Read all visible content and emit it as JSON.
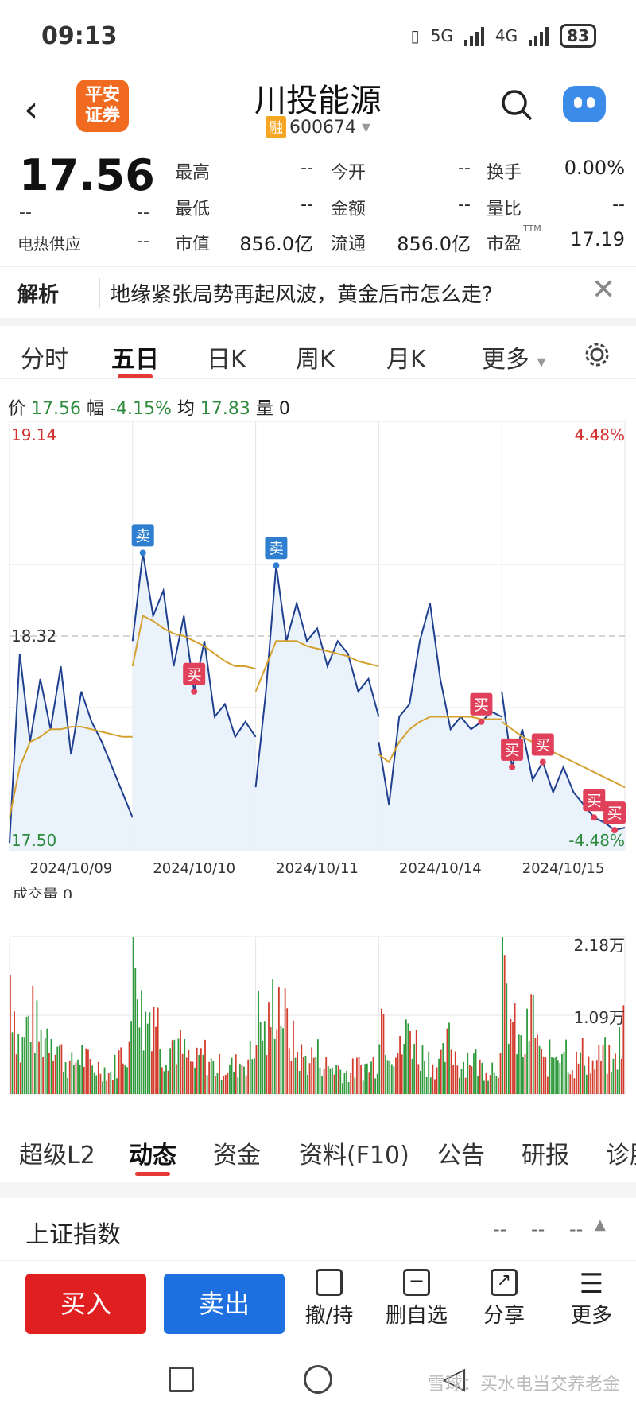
{
  "status": {
    "time": "09:13",
    "battery": "83",
    "net1": "5G",
    "net2": "4G"
  },
  "header": {
    "logo_line1": "平安",
    "logo_line2": "证券",
    "title": "川投能源",
    "badge": "融",
    "code": "600674"
  },
  "quote": {
    "price": "17.56",
    "change": "--",
    "change_pct": "--",
    "sector_label": "电热供应",
    "sector_value": "--",
    "high_label": "最高",
    "high_value": "--",
    "low_label": "最低",
    "low_value": "--",
    "mktcap_label": "市值",
    "mktcap_value": "856.0亿",
    "open_label": "今开",
    "open_value": "--",
    "amount_label": "金额",
    "amount_value": "--",
    "float_label": "流通",
    "float_value": "856.0亿",
    "turnover_label": "换手",
    "turnover_value": "0.00%",
    "volratio_label": "量比",
    "volratio_value": "--",
    "pe_label": "市盈",
    "pe_sup": "TTM",
    "pe_value": "17.19"
  },
  "news": {
    "tag": "解析",
    "text": "地缘紧张局势再起风波，黄金后市怎么走?"
  },
  "chart_tabs": [
    "分时",
    "五日",
    "日K",
    "周K",
    "月K",
    "更多"
  ],
  "info": {
    "price_label": "价",
    "price": "17.56",
    "amp_label": "幅",
    "amp": "-4.15%",
    "avg_label": "均",
    "avg": "17.83",
    "vol_label": "量",
    "vol": "0"
  },
  "chart_data": {
    "type": "line",
    "y_top_label": "19.14",
    "y_bottom_label": "17.50",
    "y_mid_label": "18.32",
    "pct_top": "4.48%",
    "pct_bottom": "-4.48%",
    "dates": [
      "2024/10/09",
      "2024/10/10",
      "2024/10/11",
      "2024/10/14",
      "2024/10/15"
    ],
    "ylim": [
      17.5,
      19.14
    ],
    "prev_close": 18.32,
    "price": [
      [
        17.5,
        18.25,
        17.9,
        18.15,
        17.95,
        18.2,
        17.85,
        18.1,
        17.98,
        17.9,
        17.8,
        17.7,
        17.6
      ],
      [
        18.3,
        18.65,
        18.4,
        18.5,
        18.2,
        18.4,
        18.1,
        18.3,
        18.0,
        18.05,
        17.92,
        17.98,
        17.92
      ],
      [
        17.72,
        18.1,
        18.6,
        18.3,
        18.45,
        18.3,
        18.35,
        18.2,
        18.3,
        18.25,
        18.1,
        18.15,
        18.0
      ],
      [
        17.9,
        17.65,
        18.0,
        18.05,
        18.3,
        18.45,
        18.15,
        17.95,
        18.0,
        17.95,
        17.98,
        18.02,
        18.0
      ],
      [
        18.1,
        17.8,
        17.95,
        17.75,
        17.82,
        17.7,
        17.8,
        17.7,
        17.65,
        17.6,
        17.58,
        17.55,
        17.56
      ]
    ],
    "avg": [
      [
        17.6,
        17.8,
        17.9,
        17.92,
        17.95,
        17.95,
        17.96,
        17.96,
        17.95,
        17.94,
        17.93,
        17.92,
        17.92
      ],
      [
        18.2,
        18.4,
        18.38,
        18.35,
        18.33,
        18.32,
        18.3,
        18.28,
        18.25,
        18.22,
        18.2,
        18.2,
        18.19
      ],
      [
        18.1,
        18.2,
        18.3,
        18.3,
        18.3,
        18.28,
        18.27,
        18.26,
        18.25,
        18.24,
        18.22,
        18.21,
        18.2
      ],
      [
        17.85,
        17.82,
        17.9,
        17.95,
        17.98,
        18.0,
        18.0,
        18.0,
        18.0,
        18.0,
        17.99,
        17.99,
        17.99
      ],
      [
        17.98,
        17.95,
        17.92,
        17.9,
        17.88,
        17.86,
        17.84,
        17.82,
        17.8,
        17.78,
        17.76,
        17.74,
        17.72
      ]
    ],
    "signals": [
      {
        "label": "卖",
        "day": 1,
        "idx": 1,
        "kind": "sell"
      },
      {
        "label": "买",
        "day": 1,
        "idx": 6,
        "kind": "buy"
      },
      {
        "label": "卖",
        "day": 2,
        "idx": 2,
        "kind": "sell"
      },
      {
        "label": "买",
        "day": 3,
        "idx": 10,
        "kind": "buy"
      },
      {
        "label": "买",
        "day": 4,
        "idx": 1,
        "kind": "buy"
      },
      {
        "label": "买",
        "day": 4,
        "idx": 4,
        "kind": "buy"
      },
      {
        "label": "买",
        "day": 4,
        "idx": 9,
        "kind": "buy"
      },
      {
        "label": "买",
        "day": 4,
        "idx": 11,
        "kind": "buy"
      }
    ],
    "volume_label": "成交量",
    "volume_value": "0",
    "vol_top": "2.18万",
    "vol_mid": "1.09万",
    "volumes": [
      [
        0.9,
        0.3,
        0.6,
        0.4,
        0.5,
        0.3,
        0.2,
        0.3,
        0.2,
        0.2,
        0.15,
        0.3,
        0.4
      ],
      [
        1.0,
        0.5,
        0.7,
        0.3,
        0.4,
        0.3,
        0.2,
        0.3,
        0.2,
        0.2,
        0.2,
        0.25,
        0.3
      ],
      [
        0.6,
        0.4,
        0.8,
        0.5,
        0.3,
        0.25,
        0.3,
        0.2,
        0.2,
        0.15,
        0.2,
        0.2,
        0.25
      ],
      [
        0.7,
        0.4,
        0.3,
        0.5,
        0.3,
        0.25,
        0.2,
        0.4,
        0.2,
        0.3,
        0.2,
        0.2,
        0.25
      ],
      [
        0.8,
        0.5,
        0.3,
        0.6,
        0.2,
        0.3,
        0.4,
        0.2,
        0.3,
        0.2,
        0.3,
        0.2,
        0.5
      ]
    ]
  },
  "bottom_tabs": [
    "超级L2",
    "动态",
    "资金",
    "资料(F10)",
    "公告",
    "研报",
    "诊股"
  ],
  "index_row": {
    "name": "上证指数",
    "v1": "--",
    "v2": "--",
    "v3": "--"
  },
  "actions": {
    "buy": "买入",
    "sell": "卖出",
    "cancel": "撤/持",
    "remove": "删自选",
    "share": "分享",
    "more": "更多"
  },
  "watermark": "雪球：买水电当交养老金"
}
